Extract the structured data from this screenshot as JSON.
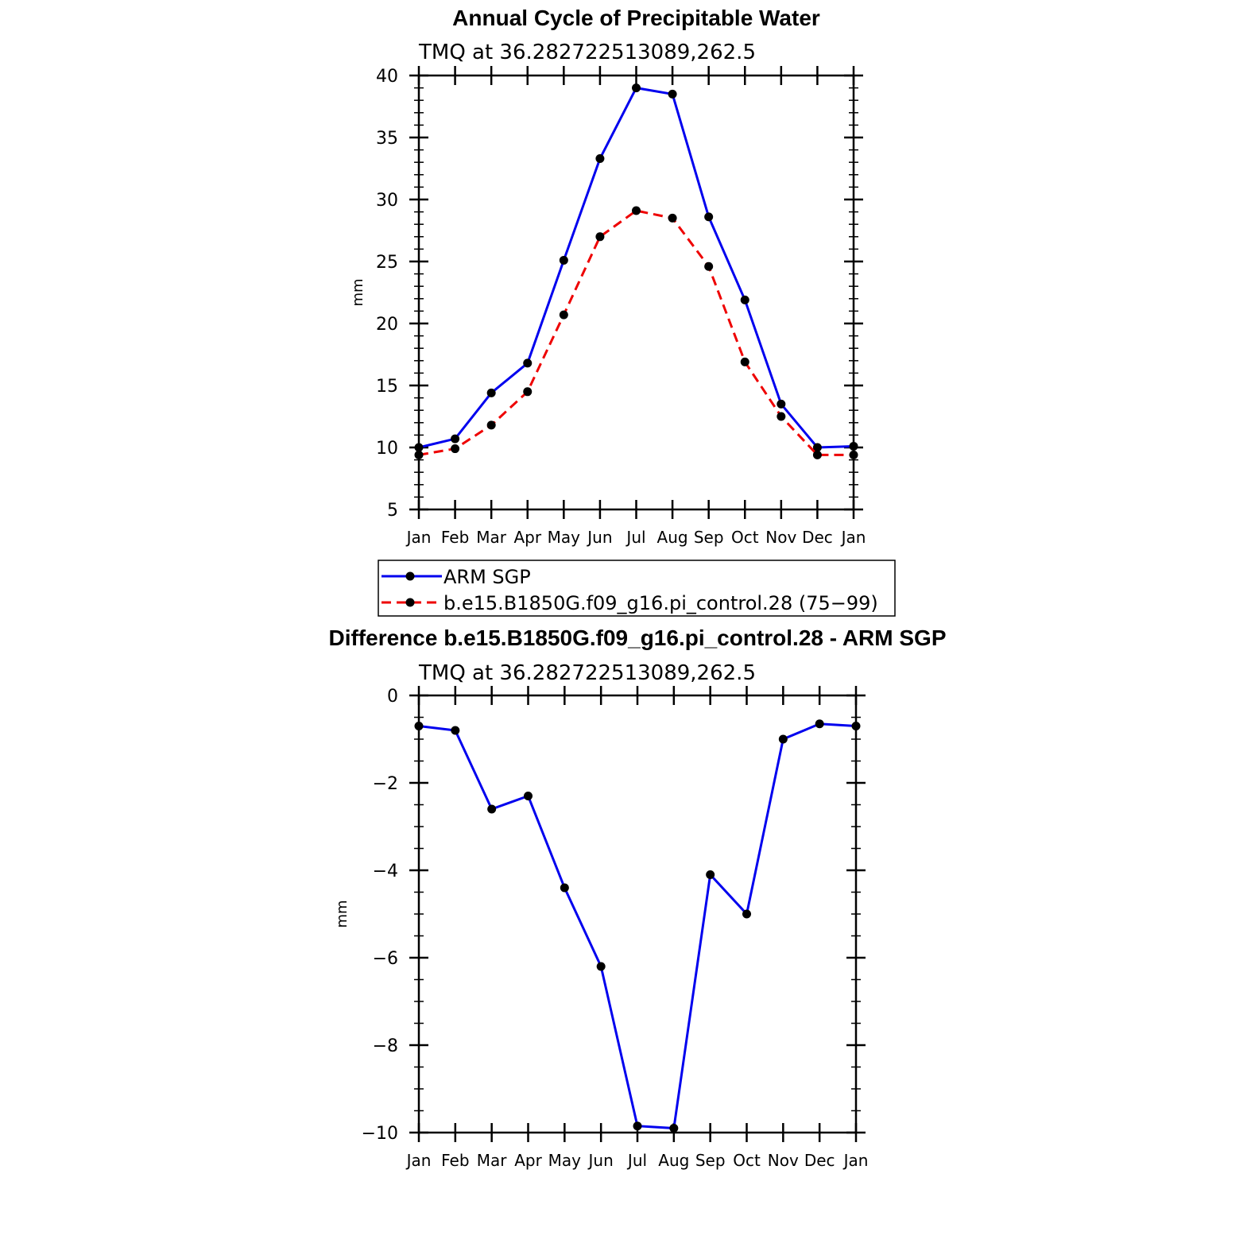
{
  "chart_data": [
    {
      "type": "line",
      "title": "Annual Cycle of Precipitable Water",
      "subtitle": "TMQ  at  36.282722513089,262.5",
      "xlabel": "",
      "ylabel": "mm",
      "categories": [
        "Jan",
        "Feb",
        "Mar",
        "Apr",
        "May",
        "Jun",
        "Jul",
        "Aug",
        "Sep",
        "Oct",
        "Nov",
        "Dec",
        "Jan"
      ],
      "ylim": [
        5,
        40
      ],
      "yticks": [
        5,
        10,
        15,
        20,
        25,
        30,
        35,
        40
      ],
      "series": [
        {
          "name": "ARM  SGP",
          "color": "#0000ee",
          "dash": "solid",
          "values": [
            10.0,
            10.7,
            14.4,
            16.8,
            25.1,
            33.3,
            39.0,
            38.5,
            28.6,
            21.9,
            13.5,
            10.0,
            10.1
          ]
        },
        {
          "name": "b.e15.B1850G.f09_g16.pi_control.28  (75−99)",
          "color": "#ee0000",
          "dash": "dashed",
          "values": [
            9.4,
            9.9,
            11.8,
            14.5,
            20.7,
            27.0,
            29.1,
            28.5,
            24.6,
            16.9,
            12.5,
            9.4,
            9.4
          ]
        }
      ],
      "legend": "bottom"
    },
    {
      "type": "line",
      "title": "Difference b.e15.B1850G.f09_g16.pi_control.28 - ARM SGP",
      "subtitle": "TMQ  at  36.282722513089,262.5",
      "xlabel": "",
      "ylabel": "mm",
      "categories": [
        "Jan",
        "Feb",
        "Mar",
        "Apr",
        "May",
        "Jun",
        "Jul",
        "Aug",
        "Sep",
        "Oct",
        "Nov",
        "Dec",
        "Jan"
      ],
      "ylim": [
        -10,
        0
      ],
      "yticks": [
        -10,
        -8,
        -6,
        -4,
        -2,
        0
      ],
      "ytick_labels": [
        "−10",
        "−8",
        "−6",
        "−4",
        "−2",
        "0"
      ],
      "series": [
        {
          "color": "#0000ee",
          "dash": "solid",
          "values": [
            -0.7,
            -0.8,
            -2.6,
            -2.3,
            -4.4,
            -6.2,
            -9.85,
            -9.9,
            -4.1,
            -5.0,
            -1.0,
            -0.65,
            -0.7
          ]
        }
      ]
    }
  ]
}
